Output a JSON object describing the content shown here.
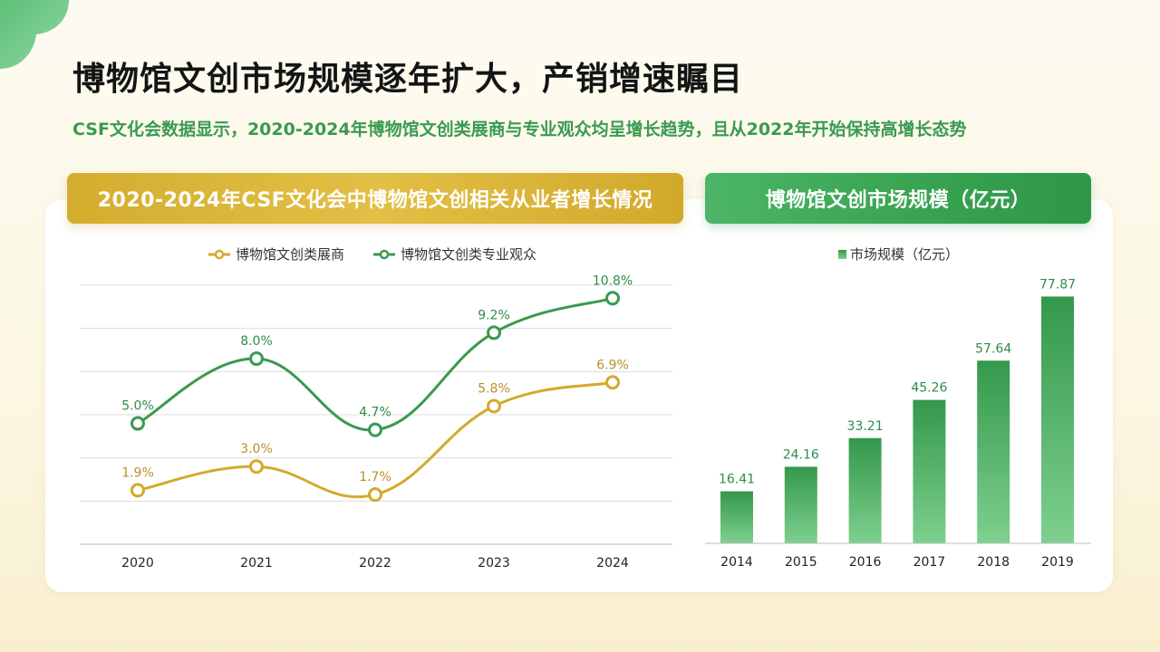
{
  "page": {
    "title": "博物馆文创市场规模逐年扩大，产销增速瞩目",
    "subtitle": "CSF文化会数据显示，2020-2024年博物馆文创类展商与专业观众均呈增长趋势，且从2022年开始保持高增长态势"
  },
  "colors": {
    "gold": "#d4a92c",
    "green": "#3a9a50",
    "gold_label": "#b8902a",
    "green_label": "#2f8c46"
  },
  "chart_data": [
    {
      "type": "line",
      "title": "2020-2024年CSF文化会中博物馆文创相关从业者增长情况",
      "x": [
        "2020",
        "2021",
        "2022",
        "2023",
        "2024"
      ],
      "series": [
        {
          "name": "博物馆文创类展商",
          "values": [
            1.9,
            3.0,
            1.7,
            5.8,
            6.9
          ],
          "labels": [
            "1.9%",
            "3.0%",
            "1.7%",
            "5.8%",
            "6.9%"
          ],
          "color": "#d4a92c"
        },
        {
          "name": "博物馆文创类专业观众",
          "values": [
            5.0,
            8.0,
            4.7,
            9.2,
            10.8
          ],
          "labels": [
            "5.0%",
            "8.0%",
            "4.7%",
            "9.2%",
            "10.8%"
          ],
          "color": "#3a9a50"
        }
      ],
      "ylim": [
        -0.6,
        11.4
      ],
      "grid": true,
      "legend": "top-center",
      "smooth": true
    },
    {
      "type": "bar",
      "title": "博物馆文创市场规模（亿元）",
      "categories": [
        "2014",
        "2015",
        "2016",
        "2017",
        "2018",
        "2019"
      ],
      "series": [
        {
          "name": "市场规模（亿元）",
          "values": [
            16.41,
            24.16,
            33.21,
            45.26,
            57.64,
            77.87
          ],
          "labels": [
            "16.41",
            "24.16",
            "33.21",
            "45.26",
            "57.64",
            "77.87"
          ],
          "color": "#3a9a50"
        }
      ],
      "ylim": [
        0,
        80
      ],
      "grid": false,
      "legend": "top-center"
    }
  ]
}
